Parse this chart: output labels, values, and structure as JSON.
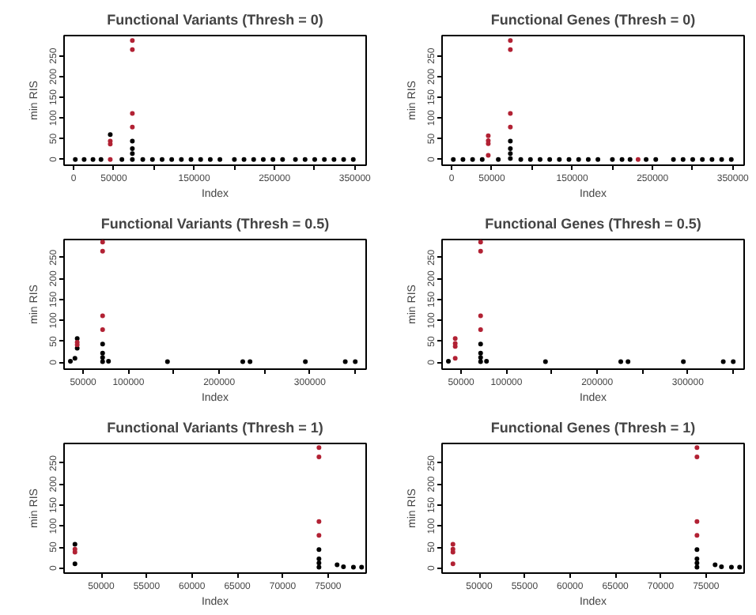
{
  "chart_data": [
    {
      "type": "scatter",
      "title": "Functional Variants (Thresh = 0)",
      "xlabel": "Index",
      "ylabel": "min RIS",
      "xlim": [
        -12000,
        364000
      ],
      "ylim": [
        -14,
        299
      ],
      "xticks": [
        0,
        50000,
        {
          "value": 100000,
          "label": null
        },
        150000,
        {
          "value": 200000,
          "label": null
        },
        250000,
        {
          "value": 300000,
          "label": null
        },
        350000
      ],
      "yticks": [
        0,
        50,
        100,
        150,
        200,
        250
      ],
      "grid": false,
      "marker": "circle",
      "series": [
        {
          "color": "#000000",
          "x": [
            2000,
            13000,
            24000,
            34000,
            45500,
            60000,
            73000,
            73000,
            73000,
            73000,
            86000,
            98000,
            110000,
            122000,
            134000,
            146000,
            158000,
            170000,
            182000,
            200000,
            212000,
            224000,
            236000,
            248000,
            260000,
            276000,
            288000,
            300000,
            312000,
            324000,
            336000,
            348000
          ],
          "values": [
            0,
            0,
            0,
            0,
            60,
            0,
            44,
            26,
            14,
            0,
            0,
            0,
            0,
            0,
            0,
            0,
            0,
            0,
            0,
            0,
            0,
            0,
            0,
            0,
            0,
            0,
            0,
            0,
            0,
            0,
            0,
            0
          ]
        },
        {
          "color": "#b22234",
          "x": [
            45500,
            45500,
            45500,
            73000,
            73000,
            73000,
            73000
          ],
          "values": [
            44,
            37,
            0,
            287,
            265,
            111,
            78
          ]
        }
      ]
    },
    {
      "type": "scatter",
      "title": "Functional Genes (Thresh = 0)",
      "xlabel": "Index",
      "ylabel": "min RIS",
      "xlim": [
        -12000,
        364000
      ],
      "ylim": [
        -14,
        299
      ],
      "xticks": [
        0,
        50000,
        {
          "value": 100000,
          "label": null
        },
        150000,
        {
          "value": 200000,
          "label": null
        },
        250000,
        {
          "value": 300000,
          "label": null
        },
        350000
      ],
      "yticks": [
        0,
        50,
        100,
        150,
        200,
        250
      ],
      "grid": false,
      "marker": "circle",
      "series": [
        {
          "color": "#000000",
          "x": [
            2000,
            14000,
            26000,
            38000,
            58000,
            73000,
            73000,
            73000,
            73000,
            86000,
            98000,
            110000,
            122000,
            134000,
            146000,
            158000,
            170000,
            182000,
            200000,
            212000,
            222000,
            242000,
            254000,
            276000,
            288000,
            300000,
            312000,
            324000,
            336000,
            348000
          ],
          "values": [
            0,
            0,
            0,
            0,
            0,
            44,
            26,
            14,
            2,
            0,
            0,
            0,
            0,
            0,
            0,
            0,
            0,
            0,
            0,
            0,
            0,
            0,
            0,
            0,
            0,
            0,
            0,
            0,
            0,
            0
          ]
        },
        {
          "color": "#b22234",
          "x": [
            45500,
            45500,
            45500,
            45500,
            73000,
            73000,
            73000,
            73000,
            232000
          ],
          "values": [
            57,
            45,
            38,
            10,
            287,
            265,
            111,
            78,
            0
          ]
        }
      ]
    },
    {
      "type": "scatter",
      "title": "Functional Variants (Thresh = 0.5)",
      "xlabel": "Index",
      "ylabel": "min RIS",
      "xlim": [
        29000,
        362000
      ],
      "ylim": [
        -16,
        293
      ],
      "xticks": [
        50000,
        100000,
        {
          "value": 150000,
          "label": null
        },
        200000,
        {
          "value": 250000,
          "label": null
        },
        300000,
        {
          "value": 350000,
          "label": null
        }
      ],
      "yticks": [
        0,
        50,
        100,
        150,
        200,
        250
      ],
      "grid": false,
      "marker": "circle",
      "series": [
        {
          "color": "#000000",
          "x": [
            36000,
            41000,
            43500,
            43500,
            71500,
            71500,
            71500,
            71500,
            78000,
            143000,
            226000,
            234000,
            295000,
            339000,
            350000
          ],
          "values": [
            3,
            10,
            57,
            34,
            44,
            22,
            12,
            2,
            3,
            2,
            2,
            2,
            2,
            2,
            2
          ]
        },
        {
          "color": "#b22234",
          "x": [
            43500,
            43500,
            71500,
            71500,
            71500,
            71500
          ],
          "values": [
            48,
            42,
            287,
            265,
            111,
            78
          ]
        }
      ]
    },
    {
      "type": "scatter",
      "title": "Functional Genes (Thresh = 0.5)",
      "xlabel": "Index",
      "ylabel": "min RIS",
      "xlim": [
        29000,
        362000
      ],
      "ylim": [
        -16,
        293
      ],
      "xticks": [
        50000,
        100000,
        {
          "value": 150000,
          "label": null
        },
        200000,
        {
          "value": 250000,
          "label": null
        },
        300000,
        {
          "value": 350000,
          "label": null
        }
      ],
      "yticks": [
        0,
        50,
        100,
        150,
        200,
        250
      ],
      "grid": false,
      "marker": "circle",
      "series": [
        {
          "color": "#000000",
          "x": [
            36000,
            71500,
            71500,
            71500,
            71500,
            78000,
            143000,
            226000,
            234000,
            295000,
            339000,
            350000
          ],
          "values": [
            3,
            44,
            22,
            12,
            2,
            3,
            2,
            2,
            2,
            2,
            2,
            2
          ]
        },
        {
          "color": "#b22234",
          "x": [
            43500,
            43500,
            43500,
            43500,
            71500,
            71500,
            71500,
            71500
          ],
          "values": [
            57,
            45,
            38,
            10,
            287,
            265,
            111,
            78
          ]
        }
      ]
    },
    {
      "type": "scatter",
      "title": "Functional Variants (Thresh = 1)",
      "xlabel": "Index",
      "ylabel": "min RIS",
      "xlim": [
        45900,
        79200
      ],
      "ylim": [
        -12,
        297
      ],
      "xticks": [
        50000,
        55000,
        60000,
        65000,
        70000,
        75000
      ],
      "yticks": [
        0,
        50,
        100,
        150,
        200,
        250
      ],
      "grid": false,
      "marker": "circle",
      "series": [
        {
          "color": "#000000",
          "x": [
            47100,
            47100,
            74000,
            74000,
            74000,
            74000,
            76000,
            76700,
            77800,
            78700
          ],
          "values": [
            57,
            10,
            44,
            22,
            12,
            2,
            8,
            3,
            2,
            2
          ]
        },
        {
          "color": "#b22234",
          "x": [
            47100,
            47100,
            74000,
            74000,
            74000,
            74000
          ],
          "values": [
            45,
            38,
            287,
            265,
            111,
            78
          ]
        }
      ]
    },
    {
      "type": "scatter",
      "title": "Functional Genes (Thresh = 1)",
      "xlabel": "Index",
      "ylabel": "min RIS",
      "xlim": [
        45900,
        79200
      ],
      "ylim": [
        -12,
        297
      ],
      "xticks": [
        50000,
        55000,
        60000,
        65000,
        70000,
        75000
      ],
      "yticks": [
        0,
        50,
        100,
        150,
        200,
        250
      ],
      "grid": false,
      "marker": "circle",
      "series": [
        {
          "color": "#000000",
          "x": [
            74000,
            74000,
            74000,
            74000,
            76000,
            76700,
            77800,
            78700
          ],
          "values": [
            44,
            22,
            12,
            2,
            8,
            3,
            2,
            2
          ]
        },
        {
          "color": "#b22234",
          "x": [
            47100,
            47100,
            47100,
            47100,
            74000,
            74000,
            74000,
            74000
          ],
          "values": [
            57,
            45,
            38,
            10,
            287,
            265,
            111,
            78
          ]
        }
      ]
    }
  ]
}
